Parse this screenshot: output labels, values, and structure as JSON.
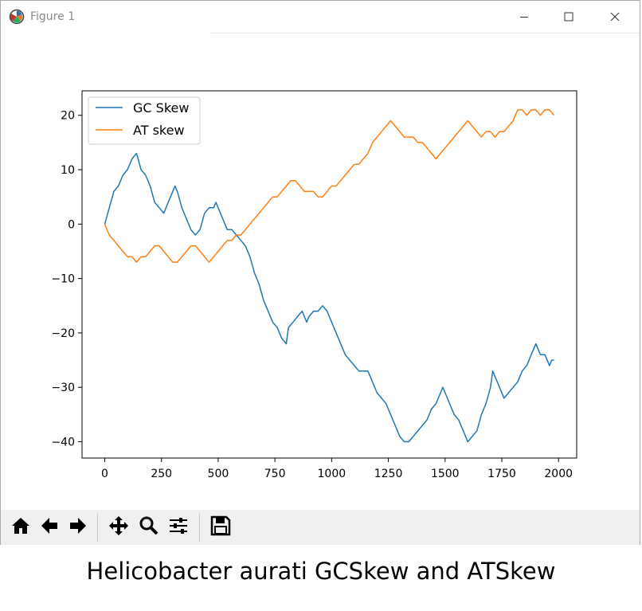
{
  "window": {
    "title": "Figure 1",
    "icons": {
      "app": "matplotlib-logo-icon",
      "minimize": "minimize-icon",
      "maximize": "maximize-icon",
      "close": "close-icon"
    }
  },
  "toolbar": {
    "buttons": [
      "home-icon",
      "back-arrow-icon",
      "forward-arrow-icon",
      "pan-icon",
      "zoom-icon",
      "subplots-config-icon",
      "save-icon"
    ]
  },
  "caption": "Helicobacter aurati GCSkew and ATSkew",
  "chart_data": {
    "type": "line",
    "title": "",
    "xlabel": "",
    "ylabel": "",
    "xlim": [
      -100,
      2080
    ],
    "ylim": [
      -43,
      24.5
    ],
    "xticks": [
      0,
      250,
      500,
      750,
      1000,
      1250,
      1500,
      1750,
      2000
    ],
    "yticks": [
      -40,
      -30,
      -20,
      -10,
      0,
      10,
      20
    ],
    "grid": false,
    "legend_position": "top-left",
    "series": [
      {
        "name": "GC Skew",
        "color": "#1f77b4",
        "points": [
          [
            0,
            0
          ],
          [
            20,
            3
          ],
          [
            40,
            6
          ],
          [
            60,
            7
          ],
          [
            80,
            9
          ],
          [
            100,
            10
          ],
          [
            120,
            12
          ],
          [
            140,
            13
          ],
          [
            160,
            10
          ],
          [
            180,
            9
          ],
          [
            200,
            7
          ],
          [
            220,
            4
          ],
          [
            240,
            3
          ],
          [
            260,
            2
          ],
          [
            280,
            4
          ],
          [
            300,
            6
          ],
          [
            310,
            7
          ],
          [
            320,
            6
          ],
          [
            340,
            3
          ],
          [
            360,
            1
          ],
          [
            380,
            -1
          ],
          [
            400,
            -2
          ],
          [
            420,
            -1
          ],
          [
            440,
            2
          ],
          [
            460,
            3
          ],
          [
            480,
            3
          ],
          [
            490,
            4
          ],
          [
            500,
            3
          ],
          [
            520,
            1
          ],
          [
            540,
            -1
          ],
          [
            560,
            -1
          ],
          [
            580,
            -2
          ],
          [
            600,
            -3
          ],
          [
            620,
            -4
          ],
          [
            640,
            -6
          ],
          [
            660,
            -9
          ],
          [
            680,
            -11
          ],
          [
            700,
            -14
          ],
          [
            720,
            -16
          ],
          [
            740,
            -18
          ],
          [
            760,
            -19
          ],
          [
            780,
            -21
          ],
          [
            800,
            -22
          ],
          [
            810,
            -19
          ],
          [
            830,
            -18
          ],
          [
            850,
            -17
          ],
          [
            870,
            -16
          ],
          [
            890,
            -18
          ],
          [
            900,
            -17
          ],
          [
            920,
            -16
          ],
          [
            940,
            -16
          ],
          [
            960,
            -15
          ],
          [
            980,
            -16
          ],
          [
            1000,
            -18
          ],
          [
            1020,
            -20
          ],
          [
            1040,
            -22
          ],
          [
            1060,
            -24
          ],
          [
            1080,
            -25
          ],
          [
            1100,
            -26
          ],
          [
            1120,
            -27
          ],
          [
            1140,
            -27
          ],
          [
            1160,
            -27
          ],
          [
            1180,
            -29
          ],
          [
            1200,
            -31
          ],
          [
            1220,
            -32
          ],
          [
            1240,
            -33
          ],
          [
            1260,
            -35
          ],
          [
            1280,
            -37
          ],
          [
            1300,
            -39
          ],
          [
            1320,
            -40
          ],
          [
            1340,
            -40
          ],
          [
            1360,
            -39
          ],
          [
            1380,
            -38
          ],
          [
            1400,
            -37
          ],
          [
            1420,
            -36
          ],
          [
            1440,
            -34
          ],
          [
            1460,
            -33
          ],
          [
            1480,
            -31
          ],
          [
            1490,
            -30
          ],
          [
            1500,
            -31
          ],
          [
            1520,
            -33
          ],
          [
            1540,
            -35
          ],
          [
            1560,
            -36
          ],
          [
            1580,
            -38
          ],
          [
            1600,
            -40
          ],
          [
            1620,
            -39
          ],
          [
            1640,
            -38
          ],
          [
            1660,
            -35
          ],
          [
            1680,
            -33
          ],
          [
            1700,
            -30
          ],
          [
            1710,
            -27
          ],
          [
            1720,
            -28
          ],
          [
            1740,
            -30
          ],
          [
            1760,
            -32
          ],
          [
            1780,
            -31
          ],
          [
            1800,
            -30
          ],
          [
            1820,
            -29
          ],
          [
            1840,
            -27
          ],
          [
            1860,
            -26
          ],
          [
            1880,
            -24
          ],
          [
            1900,
            -22
          ],
          [
            1920,
            -24
          ],
          [
            1940,
            -24
          ],
          [
            1960,
            -26
          ],
          [
            1970,
            -25
          ],
          [
            1980,
            -25
          ]
        ]
      },
      {
        "name": "AT skew",
        "color": "#ff7f0e",
        "points": [
          [
            0,
            0
          ],
          [
            20,
            -2
          ],
          [
            40,
            -3
          ],
          [
            60,
            -4
          ],
          [
            80,
            -5
          ],
          [
            100,
            -6
          ],
          [
            120,
            -6
          ],
          [
            140,
            -7
          ],
          [
            160,
            -6
          ],
          [
            180,
            -6
          ],
          [
            200,
            -5
          ],
          [
            220,
            -4
          ],
          [
            240,
            -4
          ],
          [
            260,
            -5
          ],
          [
            280,
            -6
          ],
          [
            300,
            -7
          ],
          [
            320,
            -7
          ],
          [
            340,
            -6
          ],
          [
            360,
            -5
          ],
          [
            380,
            -4
          ],
          [
            400,
            -4
          ],
          [
            420,
            -5
          ],
          [
            440,
            -6
          ],
          [
            460,
            -7
          ],
          [
            480,
            -6
          ],
          [
            500,
            -5
          ],
          [
            520,
            -4
          ],
          [
            540,
            -3
          ],
          [
            560,
            -3
          ],
          [
            580,
            -2
          ],
          [
            600,
            -2
          ],
          [
            620,
            -1
          ],
          [
            640,
            0
          ],
          [
            660,
            1
          ],
          [
            680,
            2
          ],
          [
            700,
            3
          ],
          [
            720,
            4
          ],
          [
            740,
            5
          ],
          [
            760,
            5
          ],
          [
            780,
            6
          ],
          [
            800,
            7
          ],
          [
            820,
            8
          ],
          [
            840,
            8
          ],
          [
            860,
            7
          ],
          [
            880,
            6
          ],
          [
            900,
            6
          ],
          [
            920,
            6
          ],
          [
            940,
            5
          ],
          [
            960,
            5
          ],
          [
            980,
            6
          ],
          [
            1000,
            7
          ],
          [
            1020,
            7
          ],
          [
            1040,
            8
          ],
          [
            1060,
            9
          ],
          [
            1080,
            10
          ],
          [
            1100,
            11
          ],
          [
            1120,
            11
          ],
          [
            1140,
            12
          ],
          [
            1160,
            13
          ],
          [
            1180,
            15
          ],
          [
            1200,
            16
          ],
          [
            1220,
            17
          ],
          [
            1240,
            18
          ],
          [
            1260,
            19
          ],
          [
            1280,
            18
          ],
          [
            1300,
            17
          ],
          [
            1320,
            16
          ],
          [
            1340,
            16
          ],
          [
            1360,
            16
          ],
          [
            1380,
            15
          ],
          [
            1400,
            15
          ],
          [
            1420,
            14
          ],
          [
            1440,
            13
          ],
          [
            1460,
            12
          ],
          [
            1480,
            13
          ],
          [
            1500,
            14
          ],
          [
            1520,
            15
          ],
          [
            1540,
            16
          ],
          [
            1560,
            17
          ],
          [
            1580,
            18
          ],
          [
            1600,
            19
          ],
          [
            1620,
            18
          ],
          [
            1640,
            17
          ],
          [
            1660,
            16
          ],
          [
            1680,
            17
          ],
          [
            1700,
            17
          ],
          [
            1720,
            16
          ],
          [
            1740,
            17
          ],
          [
            1760,
            17
          ],
          [
            1780,
            18
          ],
          [
            1800,
            19
          ],
          [
            1820,
            21
          ],
          [
            1840,
            21
          ],
          [
            1860,
            20
          ],
          [
            1880,
            21
          ],
          [
            1900,
            21
          ],
          [
            1920,
            20
          ],
          [
            1940,
            21
          ],
          [
            1960,
            21
          ],
          [
            1980,
            20
          ]
        ]
      }
    ]
  }
}
